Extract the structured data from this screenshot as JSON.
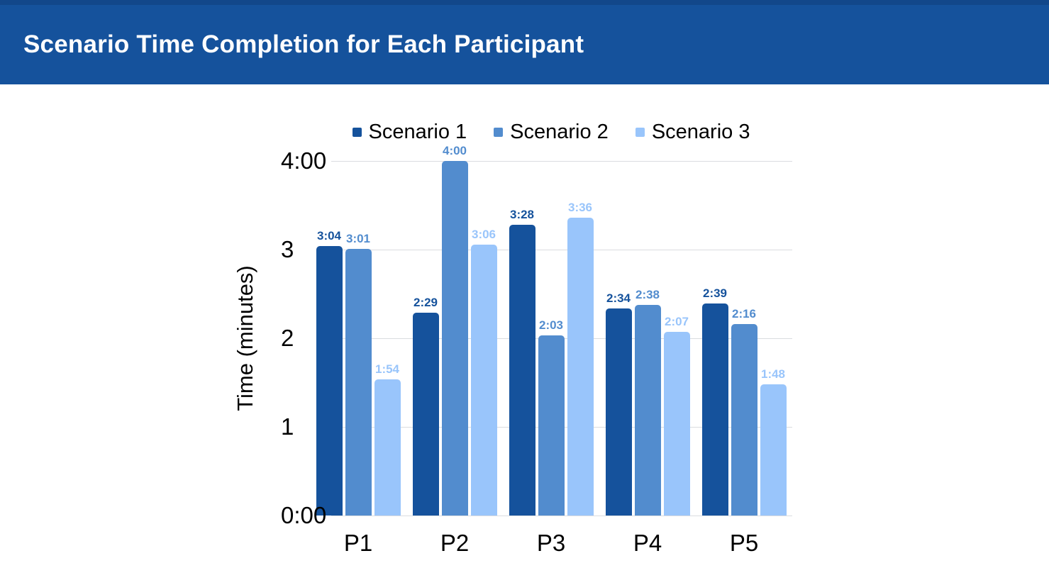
{
  "header": {
    "title": "Scenario Time Completion for Each Participant",
    "background_color": "#15529C",
    "top_strip_color": "#12478A"
  },
  "chart_data": {
    "type": "bar",
    "title": "Scenario Time Completion for Each Participant",
    "xlabel": "",
    "ylabel": "Time (minutes)",
    "ylim": [
      0,
      4
    ],
    "grid": true,
    "legend_position": "top",
    "gridline_color": "#DADCE0",
    "y_ticks": [
      {
        "label": "4:00",
        "value": 4
      },
      {
        "label": "3",
        "value": 3
      },
      {
        "label": "2",
        "value": 2
      },
      {
        "label": "1",
        "value": 1
      },
      {
        "label": "0:00",
        "value": 0
      }
    ],
    "categories": [
      "P1",
      "P2",
      "P3",
      "P4",
      "P5"
    ],
    "series": [
      {
        "name": "Scenario 1",
        "color": "#15529C",
        "labels": [
          "3:04",
          "2:29",
          "3:28",
          "2:34",
          "2:39"
        ],
        "values": [
          3.04,
          2.29,
          3.28,
          2.34,
          2.39
        ]
      },
      {
        "name": "Scenario 2",
        "color": "#528CCE",
        "labels": [
          "3:01",
          "4:00",
          "2:03",
          "2:38",
          "2:16"
        ],
        "values": [
          3.01,
          4.0,
          2.03,
          2.38,
          2.16
        ]
      },
      {
        "name": "Scenario 3",
        "color": "#99C5FB",
        "labels": [
          "1:54",
          "3:06",
          "3:36",
          "2:07",
          "1:48"
        ],
        "values": [
          1.54,
          3.06,
          3.36,
          2.07,
          1.48
        ]
      }
    ]
  }
}
